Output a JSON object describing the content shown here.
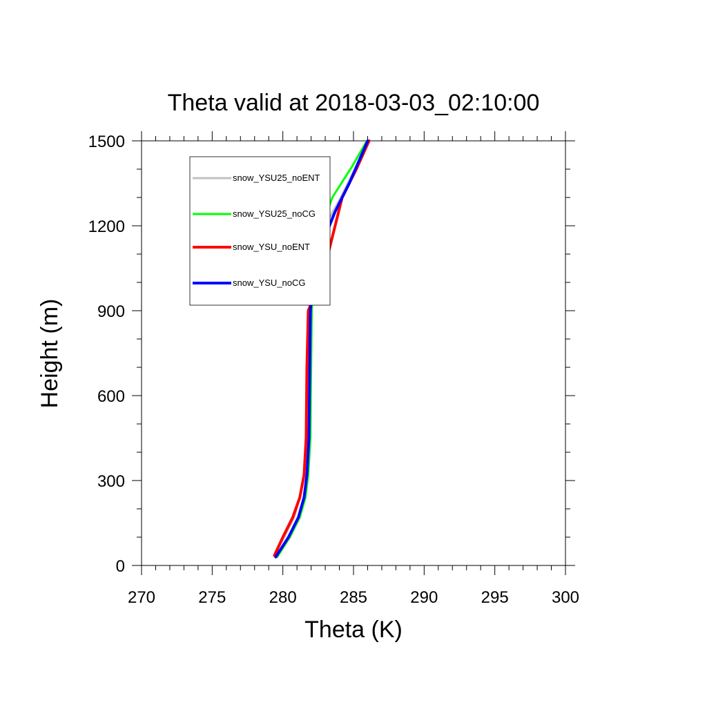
{
  "chart_data": {
    "type": "line",
    "title": "Theta valid at 2018-03-03_02:10:00",
    "xlabel": "Theta (K)",
    "ylabel": "Height (m)",
    "xlim": [
      270,
      300
    ],
    "ylim": [
      0,
      1500
    ],
    "xticks": [
      270,
      275,
      280,
      285,
      290,
      295,
      300
    ],
    "yticks": [
      0,
      300,
      600,
      900,
      1200,
      1500
    ],
    "x_minor_step": 1,
    "y_minor_step": 100,
    "grid": false,
    "legend_position": "top-left",
    "series": [
      {
        "name": "snow_YSU25_noENT",
        "color": "#c0c0c0",
        "points": [
          [
            279.4,
            35
          ],
          [
            280.1,
            100
          ],
          [
            280.8,
            170
          ],
          [
            281.2,
            240
          ],
          [
            281.5,
            320
          ],
          [
            281.7,
            450
          ],
          [
            281.85,
            700
          ],
          [
            281.95,
            900
          ],
          [
            282.0,
            1000
          ],
          [
            282.1,
            1090
          ],
          [
            283.0,
            1200
          ],
          [
            284.1,
            1300
          ],
          [
            285.1,
            1400
          ],
          [
            286.0,
            1500
          ]
        ]
      },
      {
        "name": "snow_YSU25_noCG",
        "color": "#00ff00",
        "points": [
          [
            279.6,
            30
          ],
          [
            280.5,
            100
          ],
          [
            281.2,
            170
          ],
          [
            281.6,
            240
          ],
          [
            281.8,
            320
          ],
          [
            281.95,
            450
          ],
          [
            282.0,
            700
          ],
          [
            282.05,
            900
          ],
          [
            282.15,
            1000
          ],
          [
            282.4,
            1100
          ],
          [
            282.8,
            1200
          ],
          [
            283.5,
            1300
          ],
          [
            284.9,
            1410
          ],
          [
            285.95,
            1500
          ]
        ]
      },
      {
        "name": "snow_YSU_noENT",
        "color": "#ff0000",
        "points": [
          [
            279.4,
            35
          ],
          [
            280.0,
            100
          ],
          [
            280.7,
            170
          ],
          [
            281.2,
            240
          ],
          [
            281.5,
            320
          ],
          [
            281.65,
            450
          ],
          [
            281.7,
            700
          ],
          [
            281.8,
            900
          ],
          [
            282.2,
            950
          ],
          [
            282.7,
            1000
          ],
          [
            283.2,
            1100
          ],
          [
            284.2,
            1300
          ],
          [
            285.2,
            1400
          ],
          [
            286.1,
            1500
          ]
        ]
      },
      {
        "name": "snow_YSU_noCG",
        "color": "#0000ff",
        "points": [
          [
            279.5,
            30
          ],
          [
            280.4,
            100
          ],
          [
            281.1,
            170
          ],
          [
            281.5,
            240
          ],
          [
            281.7,
            320
          ],
          [
            281.85,
            450
          ],
          [
            281.9,
            700
          ],
          [
            281.95,
            900
          ],
          [
            282.1,
            1000
          ],
          [
            282.3,
            1050
          ],
          [
            282.9,
            1150
          ],
          [
            283.7,
            1250
          ],
          [
            284.7,
            1350
          ],
          [
            286.0,
            1500
          ]
        ]
      }
    ]
  }
}
